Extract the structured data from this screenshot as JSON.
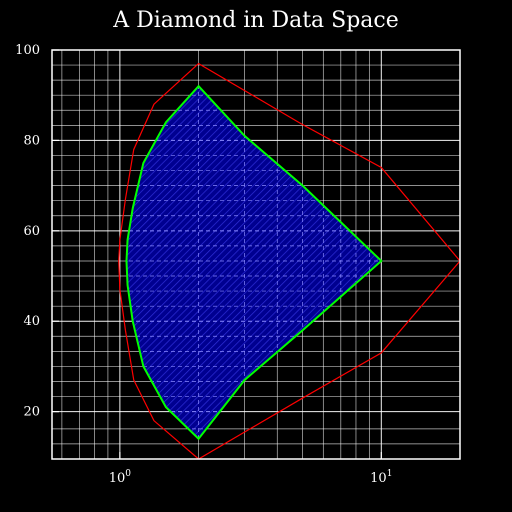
{
  "chart_data": {
    "type": "line",
    "title": "A Diamond in Data Space",
    "xlabel": "",
    "ylabel": "",
    "xscale": "log",
    "xlim": [
      0.55,
      20
    ],
    "ylim": [
      9.52,
      100
    ],
    "grid": true,
    "grid_style": "white major and minor gridlines; dashed light-blue gridlines inside the filled region",
    "yticks": [
      {
        "value": 20,
        "label": "20"
      },
      {
        "value": 40,
        "label": "40"
      },
      {
        "value": 60,
        "label": "60"
      },
      {
        "value": 80,
        "label": "80"
      },
      {
        "value": 100,
        "label": "100"
      }
    ],
    "yminor": [
      12.86,
      16.19,
      23.33,
      26.67,
      30,
      33.33,
      36.67,
      43.33,
      46.67,
      50,
      53.33,
      56.67,
      63.33,
      66.67,
      70,
      73.33,
      76.67,
      83.33,
      86.67,
      90,
      93.33,
      96.67
    ],
    "xticks": [
      {
        "value": 1,
        "base": "10",
        "exp": "0"
      },
      {
        "value": 10,
        "base": "10",
        "exp": "1"
      }
    ],
    "xminor": [
      0.6,
      0.7,
      0.8,
      0.9,
      2,
      3,
      4,
      5,
      6,
      7,
      8,
      9,
      20
    ],
    "colors": {
      "background": "#000000",
      "axes": "#ffffff",
      "grid": "#ffffff",
      "inner_grid": "#8a8aff",
      "fill": "#000090",
      "hatch": "#2f2fd8",
      "inner_curve": "#00ff00",
      "outer_curve": "#ff0000"
    },
    "series": [
      {
        "role": "outer",
        "color": "#ff0000",
        "points": [
          [
            2,
            97
          ],
          [
            1.35,
            88
          ],
          [
            1.13,
            78
          ],
          [
            1.05,
            67
          ],
          [
            1.0,
            58
          ],
          [
            0.99,
            53.33
          ],
          [
            1.0,
            47
          ],
          [
            1.05,
            38
          ],
          [
            1.13,
            27
          ],
          [
            1.35,
            18
          ],
          [
            2,
            9.52
          ],
          [
            5,
            23
          ],
          [
            10,
            33
          ],
          [
            20,
            53.33
          ],
          [
            10,
            74
          ],
          [
            5,
            83.5
          ],
          [
            2,
            97
          ]
        ]
      },
      {
        "role": "inner",
        "color": "#00ff00",
        "filled": true,
        "points": [
          [
            2,
            92
          ],
          [
            1.5,
            84
          ],
          [
            1.23,
            75
          ],
          [
            1.12,
            65
          ],
          [
            1.07,
            58
          ],
          [
            1.06,
            53.33
          ],
          [
            1.07,
            48
          ],
          [
            1.12,
            40
          ],
          [
            1.23,
            30
          ],
          [
            1.5,
            21
          ],
          [
            2,
            14
          ],
          [
            3,
            27
          ],
          [
            5,
            38
          ],
          [
            10,
            53.33
          ],
          [
            5,
            70
          ],
          [
            3,
            81
          ],
          [
            2,
            92
          ]
        ]
      }
    ]
  }
}
